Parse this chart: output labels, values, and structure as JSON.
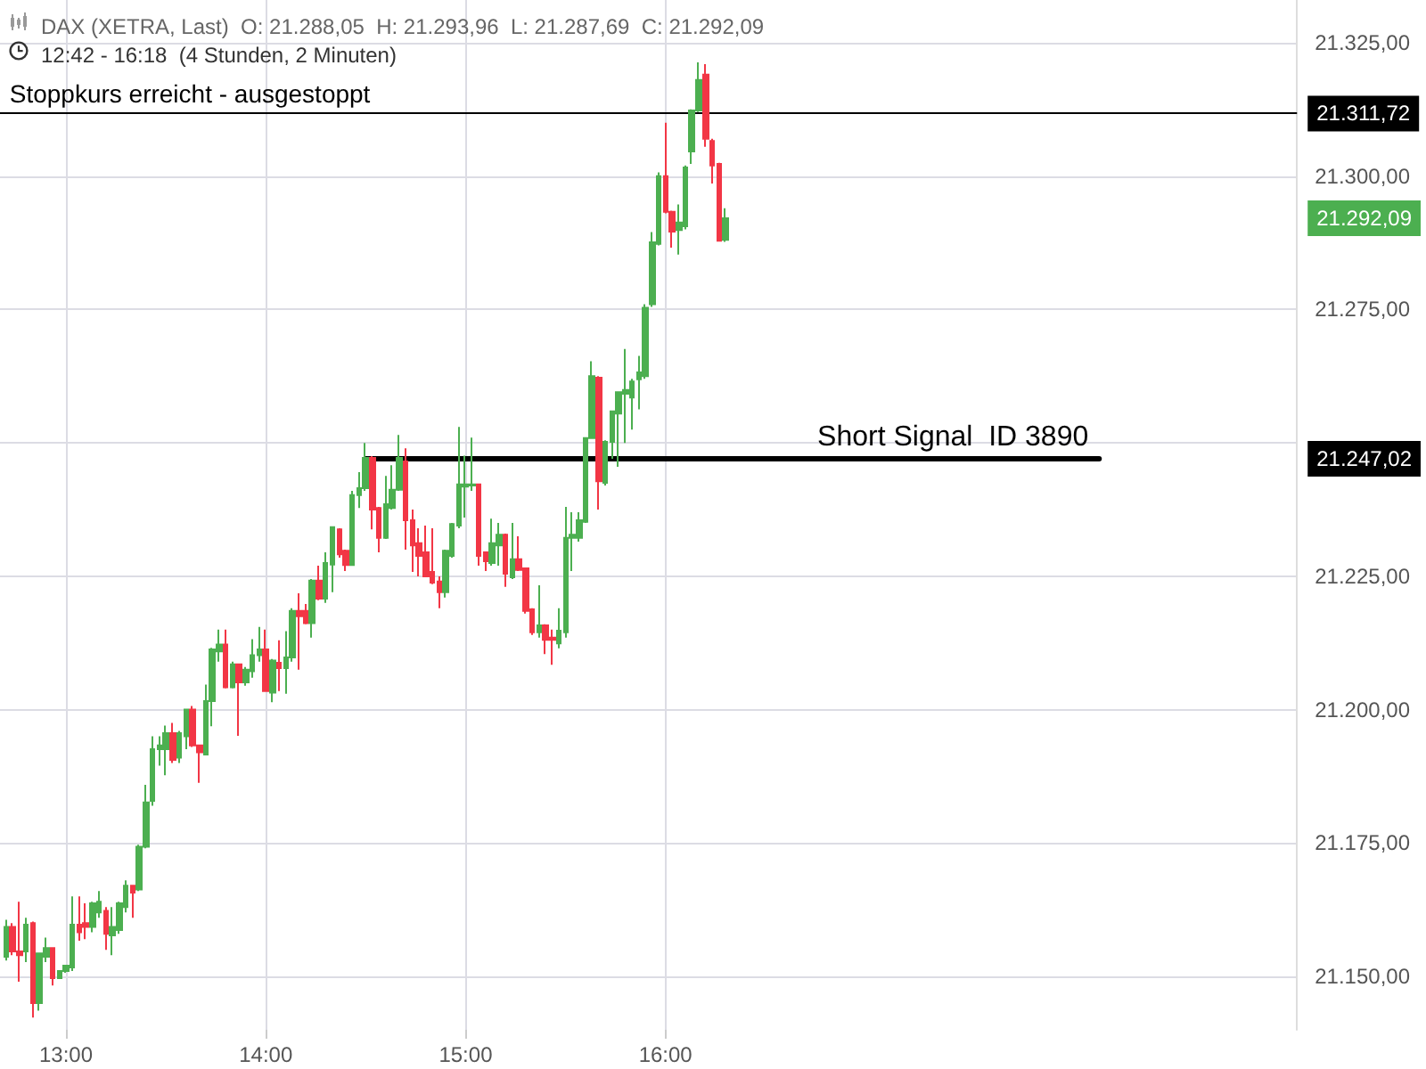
{
  "chart_data": {
    "type": "candlestick",
    "title": "DAX (XETRA, Last)  O: 21.288,05  H: 21.293,96  L: 21.287,69  C: 21.292,09",
    "subtitle": "12:42 - 16:18  (4 Stunden, 2 Minuten)",
    "xlim": [
      12.67,
      19.16
    ],
    "xticks": [
      {
        "value": 13,
        "label": "13:00"
      },
      {
        "value": 14,
        "label": "14:00"
      },
      {
        "value": 15,
        "label": "15:00"
      },
      {
        "value": 16,
        "label": "16:00"
      }
    ],
    "ylim": [
      21140,
      21333
    ],
    "yticks": [
      {
        "value": 21150,
        "label": "21.150,00"
      },
      {
        "value": 21175,
        "label": "21.175,00"
      },
      {
        "value": 21200,
        "label": "21.200,00"
      },
      {
        "value": 21225,
        "label": "21.225,00"
      },
      {
        "value": 21250,
        "label": null
      },
      {
        "value": 21275,
        "label": "21.275,00"
      },
      {
        "value": 21300,
        "label": "21.300,00"
      },
      {
        "value": 21325,
        "label": "21.325,00"
      },
      {
        "value": 21292.09,
        "label": "21.292,09"
      },
      {
        "value": 21247.02,
        "label": "21.247,02"
      }
    ],
    "grid": true,
    "series": [
      {
        "colors": [
          "#4caf50",
          "#f23645",
          "#f23645",
          "#4caf50",
          "#f23645",
          "#4caf50",
          "#4caf50",
          "#f23645",
          "#4caf50",
          "#4caf50",
          "#4caf50",
          "#f23645",
          "#f23645",
          "#4caf50",
          "#4caf50",
          "#f23645",
          "#4caf50",
          "#4caf50",
          "#4caf50",
          "#f23645",
          "#4caf50",
          "#4caf50",
          "#4caf50",
          "#4caf50",
          "#4caf50",
          "#f23645",
          "#4caf50",
          "#4caf50",
          "#f23645",
          "#f23645",
          "#4caf50",
          "#4caf50",
          "#4caf50",
          "#f23645",
          "#4caf50",
          "#f23645",
          "#4caf50",
          "#4caf50",
          "#4caf50",
          "#f23645",
          "#4caf50",
          "#f23645",
          "#4caf50",
          "#4caf50",
          "#f23645",
          "#f23645",
          "#4caf50",
          "#f23645",
          "#4caf50",
          "#4caf50",
          "#f23645",
          "#f23645",
          "#4caf50",
          "#4caf50",
          "#4caf50",
          "#f23645",
          "#f23645",
          "#4caf50",
          "#4caf50",
          "#4caf50",
          "#f23645",
          "#f23645",
          "#f23645",
          "#f23645",
          "#f23645",
          "#f23645",
          "#4caf50",
          "#4caf50",
          "#4caf50",
          "#4caf50",
          "#4caf50",
          "#f23645",
          "#f23645",
          "#4caf50",
          "#4caf50",
          "#f23645",
          "#4caf50",
          "#f23645",
          "#f23645",
          "#f23645",
          "#4caf50",
          "#f23645",
          "#f23645",
          "#4caf50",
          "#4caf50",
          "#4caf50",
          "#4caf50",
          "#4caf50",
          "#4caf50",
          "#f23645",
          "#4caf50",
          "#4caf50",
          "#4caf50",
          "#4caf50",
          "#4caf50",
          "#4caf50",
          "#4caf50",
          "#4caf50",
          "#4caf50",
          "#f23645",
          "#f23645",
          "#4caf50",
          "#4caf50",
          "#4caf50",
          "#4caf50",
          "#f23645",
          "#f23645",
          "#f23645",
          "#4caf50"
        ],
        "x": [
          12.7,
          12.733,
          12.767,
          12.8,
          12.833,
          12.867,
          12.9,
          12.933,
          12.967,
          13,
          13.033,
          13.067,
          13.1,
          13.133,
          13.167,
          13.2,
          13.233,
          13.267,
          13.3,
          13.333,
          13.367,
          13.4,
          13.433,
          13.467,
          13.5,
          13.533,
          13.567,
          13.6,
          13.633,
          13.667,
          13.7,
          13.733,
          13.767,
          13.8,
          13.833,
          13.867,
          13.9,
          13.933,
          13.967,
          14,
          14.033,
          14.067,
          14.1,
          14.133,
          14.167,
          14.2,
          14.233,
          14.267,
          14.3,
          14.333,
          14.367,
          14.4,
          14.433,
          14.467,
          14.5,
          14.533,
          14.567,
          14.6,
          14.633,
          14.667,
          14.7,
          14.733,
          14.767,
          14.8,
          14.833,
          14.867,
          14.9,
          14.933,
          14.967,
          15,
          15.033,
          15.067,
          15.1,
          15.133,
          15.167,
          15.2,
          15.233,
          15.267,
          15.3,
          15.333,
          15.367,
          15.4,
          15.433,
          15.467,
          15.5,
          15.533,
          15.567,
          15.6,
          15.633,
          15.667,
          15.7,
          15.733,
          15.767,
          15.8,
          15.833,
          15.867,
          15.9,
          15.933,
          15.967,
          16,
          16.033,
          16.067,
          16.1,
          16.133,
          16.167,
          16.2,
          16.233,
          16.267,
          16.3
        ],
        "ohlc": [
          [
            21153.7,
            21160.6,
            21153,
            21159.3
          ],
          [
            21159.3,
            21160,
            21154,
            21154.7
          ],
          [
            21154.7,
            21164,
            21149,
            21154
          ],
          [
            21154.7,
            21161,
            21152.7,
            21159.7
          ],
          [
            21160,
            21160.3,
            21142.3,
            21145
          ],
          [
            21145,
            21154.3,
            21143.6,
            21154.3
          ],
          [
            21153.7,
            21157.3,
            21152.7,
            21155.3
          ],
          [
            21155.3,
            21155.3,
            21148.3,
            21149.7
          ],
          [
            21149.7,
            21151,
            21149.7,
            21151
          ],
          [
            21151,
            21152,
            21150.7,
            21152
          ],
          [
            21151.7,
            21165,
            21151,
            21159.7
          ],
          [
            21159.7,
            21165,
            21156.7,
            21158.3
          ],
          [
            21160,
            21163.7,
            21157,
            21159.3
          ],
          [
            21159.3,
            21164,
            21158.3,
            21163.7
          ],
          [
            21162,
            21166,
            21161,
            21164
          ],
          [
            21162.3,
            21163,
            21155,
            21158
          ],
          [
            21157.7,
            21163,
            21154,
            21159.3
          ],
          [
            21158.7,
            21164,
            21158,
            21163.7
          ],
          [
            21163,
            21168,
            21162,
            21167
          ],
          [
            21167,
            21167,
            21161,
            21165.7
          ],
          [
            21166.3,
            21174.7,
            21166,
            21174.3
          ],
          [
            21174.3,
            21185.9,
            21174,
            21182.6
          ],
          [
            21182.9,
            21195,
            21182,
            21192.6
          ],
          [
            21192.6,
            21195,
            21189.5,
            21193.3
          ],
          [
            21192.6,
            21197,
            21187.7,
            21195.6
          ],
          [
            21195.6,
            21197.5,
            21190,
            21190.6
          ],
          [
            21191,
            21196,
            21190,
            21195.6
          ],
          [
            21195,
            21200,
            21192.6,
            21200
          ],
          [
            21200,
            21200.7,
            21193,
            21193.3
          ],
          [
            21193.3,
            21193.3,
            21186.3,
            21192
          ],
          [
            21191.6,
            21204.7,
            21191.6,
            21201.6
          ],
          [
            21201.6,
            21211.6,
            21196.9,
            21211.3
          ],
          [
            21210.9,
            21215,
            21209,
            21212.2
          ],
          [
            21212.2,
            21215,
            21204,
            21204.2
          ],
          [
            21204.2,
            21209,
            21204,
            21208.5
          ],
          [
            21208.5,
            21208.5,
            21195.1,
            21205.1
          ],
          [
            21205.1,
            21208,
            21204.5,
            21207.5
          ],
          [
            21207.2,
            21213.2,
            21206,
            21210.2
          ],
          [
            21210.2,
            21215.5,
            21209,
            21211.3
          ],
          [
            21211.3,
            21215,
            21203.5,
            21203.5
          ],
          [
            21203.2,
            21209.5,
            21201.4,
            21209.2
          ],
          [
            21208.8,
            21213,
            21203.5,
            21207.8
          ],
          [
            21207.8,
            21214.7,
            21203,
            21209.8
          ],
          [
            21209.8,
            21219,
            21209,
            21218.5
          ],
          [
            21218.5,
            21221.8,
            21207.5,
            21217.5
          ],
          [
            21218.5,
            21219.8,
            21216,
            21216.2
          ],
          [
            21216.2,
            21224.5,
            21213.5,
            21224.2
          ],
          [
            21224.2,
            21227,
            21220.5,
            21220.8
          ],
          [
            21220.8,
            21229.5,
            21220,
            21227.5
          ],
          [
            21227.2,
            21234.2,
            21222,
            21234.2
          ],
          [
            21233.8,
            21234,
            21228.5,
            21229.1
          ],
          [
            21229.8,
            21230,
            21226,
            21227.1
          ],
          [
            21227.1,
            21241,
            21227,
            21240.2
          ],
          [
            21240.2,
            21244.5,
            21237.8,
            21241.5
          ],
          [
            21241.5,
            21250,
            21241,
            21247.2
          ],
          [
            21247.2,
            21247.5,
            21233.8,
            21237.5
          ],
          [
            21237.8,
            21238,
            21229.5,
            21232.2
          ],
          [
            21232.2,
            21243.8,
            21232,
            21238.5
          ],
          [
            21237.8,
            21245.8,
            21237.5,
            21241.2
          ],
          [
            21241.2,
            21251.5,
            21241,
            21247.2
          ],
          [
            21246.5,
            21249,
            21230,
            21235.5
          ],
          [
            21235.5,
            21237.5,
            21225.8,
            21230.8
          ],
          [
            21231.2,
            21234,
            21225,
            21228.8
          ],
          [
            21229.5,
            21234.5,
            21225,
            21225
          ],
          [
            21225.8,
            21234,
            21223.5,
            21223.8
          ],
          [
            21224,
            21225,
            21219,
            21222
          ],
          [
            21222,
            21230,
            21221,
            21229.8
          ],
          [
            21228.8,
            21235,
            21228.5,
            21234.8
          ],
          [
            21234.5,
            21253,
            21234,
            21242.2
          ],
          [
            21241.8,
            21247.6,
            21236,
            21242.2
          ],
          [
            21242,
            21251,
            21241,
            21242.2
          ],
          [
            21242.2,
            21242.2,
            21227,
            21228.8
          ],
          [
            21229.5,
            21229.5,
            21226,
            21227.8
          ],
          [
            21227.5,
            21235.8,
            21227,
            21231.2
          ],
          [
            21230.8,
            21235,
            21227,
            21232.8
          ],
          [
            21232.8,
            21233,
            21223,
            21225.5
          ],
          [
            21224.8,
            21235,
            21224.5,
            21228.2
          ],
          [
            21228.2,
            21232.5,
            21226,
            21226.2
          ],
          [
            21226.5,
            21226.5,
            21218,
            21218.5
          ],
          [
            21218.8,
            21219,
            21214,
            21214.5
          ],
          [
            21214.5,
            21223.3,
            21213.5,
            21215.8
          ],
          [
            21215.8,
            21216,
            21210.4,
            21213.1
          ],
          [
            21213.5,
            21215,
            21208.4,
            21213.1
          ],
          [
            21212.4,
            21219,
            21211.5,
            21214.8
          ],
          [
            21214.5,
            21238,
            21213.5,
            21232.2
          ],
          [
            21232.2,
            21237,
            21226,
            21232.8
          ],
          [
            21232.2,
            21237,
            21231.5,
            21235.5
          ],
          [
            21235.2,
            21251,
            21235,
            21250.9
          ],
          [
            21250.9,
            21265.3,
            21250.9,
            21262.5
          ],
          [
            21262.2,
            21262.5,
            21237.5,
            21242.8
          ],
          [
            21242.5,
            21250.5,
            21242,
            21250.2
          ],
          [
            21250.2,
            21256,
            21247,
            21255.9
          ],
          [
            21255.5,
            21259.5,
            21245.5,
            21259.5
          ],
          [
            21259.2,
            21267.6,
            21250,
            21259.9
          ],
          [
            21258.5,
            21262,
            21252.5,
            21261.5
          ],
          [
            21261.9,
            21266.3,
            21256.3,
            21263.2
          ],
          [
            21262.5,
            21276,
            21262,
            21275.3
          ],
          [
            21276,
            21289.5,
            21275.5,
            21287.6
          ],
          [
            21287.3,
            21300.7,
            21287,
            21300
          ],
          [
            21300,
            21310,
            21293,
            21293.3
          ],
          [
            21293.3,
            21293.5,
            21286.6,
            21289.6
          ],
          [
            21289.9,
            21294.7,
            21285.3,
            21291.3
          ],
          [
            21290.6,
            21302,
            21290,
            21301.6
          ],
          [
            21304.6,
            21312.5,
            21302.3,
            21312.3
          ],
          [
            21312.3,
            21321.3,
            21312,
            21318
          ],
          [
            21319,
            21321,
            21305.5,
            21307
          ],
          [
            21306.6,
            21307,
            21298.6,
            21302
          ],
          [
            21302.3,
            21302.5,
            21287.9,
            21287.9
          ],
          [
            21288.05,
            21293.96,
            21287.69,
            21292.09
          ]
        ]
      },
      {
        "type": "line",
        "name": "Short Signal  ID 3890",
        "color": "#000000",
        "line_style": "solid",
        "x": [
          14.5,
          18.17
        ],
        "values": [
          21247.02,
          21247.02
        ]
      }
    ],
    "ref_lines": [
      {
        "axis": "y",
        "value": 21311.72,
        "label": "21.311,72",
        "color": "#000000"
      }
    ],
    "annotations": [
      {
        "text": "Stoppkurs erreicht - ausgestoppt",
        "x": 12.7,
        "y": 21311.72
      }
    ]
  }
}
